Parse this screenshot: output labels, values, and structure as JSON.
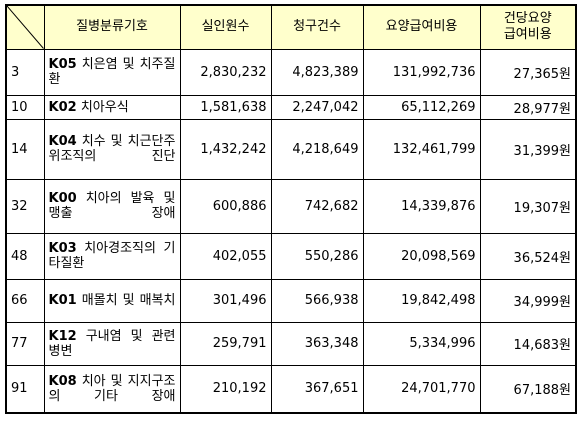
{
  "header": {
    "name": "질병분류기호",
    "patients": "실인원수",
    "claims": "청구건수",
    "cost": "요양급여비용",
    "per_claim_line1": "건당요양",
    "per_claim_line2": "급여비용"
  },
  "rows": [
    {
      "rank": "3",
      "code": "K05",
      "name": "치은염 및 치주질환",
      "patients": "2,830,232",
      "claims": "4,823,389",
      "cost": "131,992,736",
      "per_claim": "27,365원"
    },
    {
      "rank": "10",
      "code": "K02",
      "name": "치아우식",
      "patients": "1,581,638",
      "claims": "2,247,042",
      "cost": "65,112,269",
      "per_claim": "28,977원"
    },
    {
      "rank": "14",
      "code": "K04",
      "name": "치수 및 치근단주위조직의 진단",
      "patients": "1,432,242",
      "claims": "4,218,649",
      "cost": "132,461,799",
      "per_claim": "31,399원"
    },
    {
      "rank": "32",
      "code": "K00",
      "name": "치아의 발육 및 맹출 장애",
      "patients": "600,886",
      "claims": "742,682",
      "cost": "14,339,876",
      "per_claim": "19,307원"
    },
    {
      "rank": "48",
      "code": "K03",
      "name": "치아경조직의 기타질환",
      "patients": "402,055",
      "claims": "550,286",
      "cost": "20,098,569",
      "per_claim": "36,524원"
    },
    {
      "rank": "66",
      "code": "K01",
      "name": "매몰치 및 매복치",
      "patients": "301,496",
      "claims": "566,938",
      "cost": "19,842,498",
      "per_claim": "34,999원"
    },
    {
      "rank": "77",
      "code": "K12",
      "name": "구내염 및 관련 병변",
      "patients": "259,791",
      "claims": "363,348",
      "cost": "5,334,996",
      "per_claim": "14,683원"
    },
    {
      "rank": "91",
      "code": "K08",
      "name": "치아 및 지지구조의 기타 장애",
      "patients": "210,192",
      "claims": "367,651",
      "cost": "24,701,770",
      "per_claim": "67,188원"
    }
  ]
}
